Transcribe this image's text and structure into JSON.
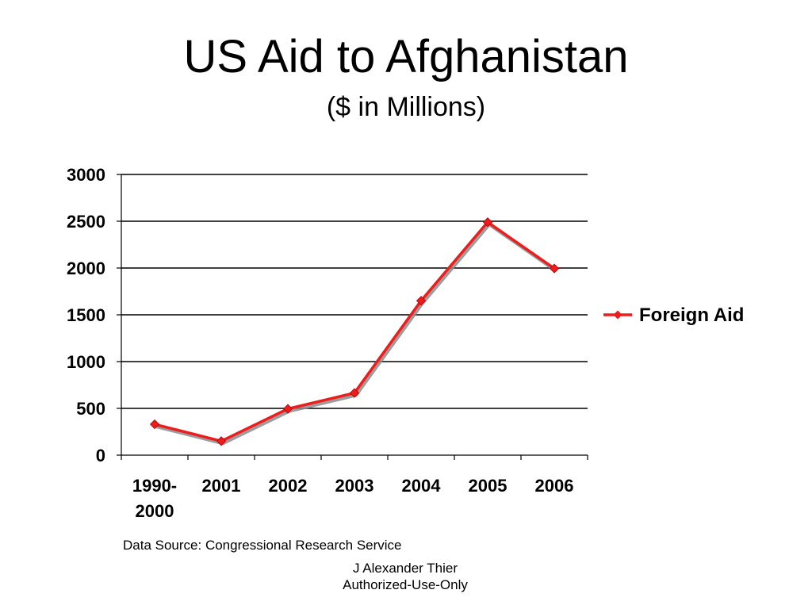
{
  "title": "US Aid to Afghanistan",
  "subtitle": "($ in Millions)",
  "source_note": "Data Source: Congressional Research Service",
  "credit": {
    "author": "J Alexander Thier",
    "usage": "Authorized-Use-Only"
  },
  "chart_data": {
    "type": "line",
    "title": "",
    "xlabel": "",
    "ylabel": "",
    "categories": [
      [
        "1990-",
        "2000"
      ],
      [
        "2001"
      ],
      [
        "2002"
      ],
      [
        "2003"
      ],
      [
        "2004"
      ],
      [
        "2005"
      ],
      [
        "2006"
      ]
    ],
    "series": [
      {
        "name": "Foreign Aid",
        "color": "#ee1c1c",
        "shadow_color": "#8c8c8c",
        "marker": "diamond",
        "values": [
          330,
          150,
          495,
          665,
          1650,
          2490,
          1995
        ]
      }
    ],
    "ylim": [
      0,
      3000
    ],
    "yticks": [
      0,
      500,
      1000,
      1500,
      2000,
      2500,
      3000
    ],
    "grid": "horizontal",
    "legend": "right"
  }
}
